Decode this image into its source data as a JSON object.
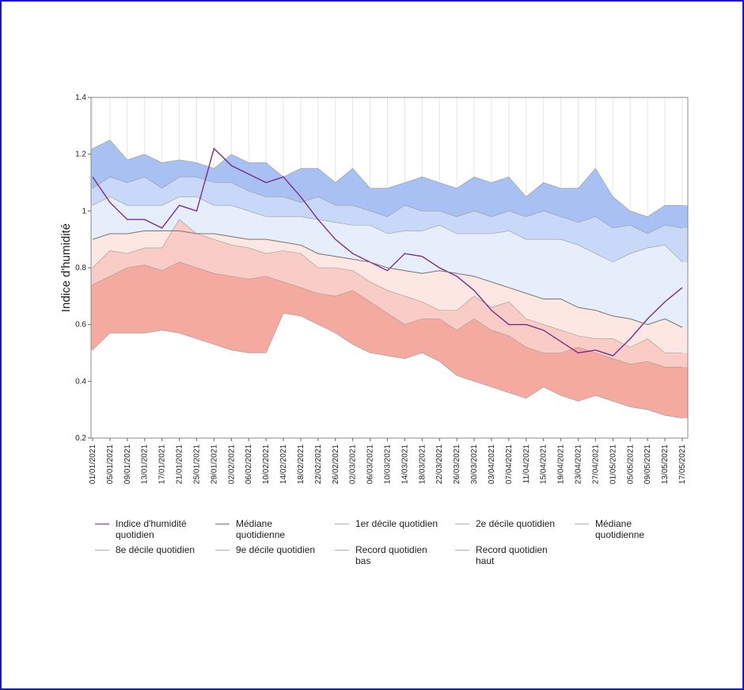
{
  "chart_data": {
    "type": "band-line",
    "y_label": "Indice d'humidité",
    "ylim": [
      0.2,
      1.4
    ],
    "yticks": [
      0.2,
      0.4,
      0.6,
      0.8,
      1.0,
      1.2,
      1.4
    ],
    "x": [
      "01/01/2021",
      "05/01/2021",
      "09/01/2021",
      "13/01/2021",
      "17/01/2021",
      "21/01/2021",
      "25/01/2021",
      "29/01/2021",
      "02/02/2021",
      "06/02/2021",
      "10/02/2021",
      "14/02/2021",
      "18/02/2021",
      "22/02/2021",
      "26/02/2021",
      "02/03/2021",
      "06/03/2021",
      "10/03/2021",
      "14/03/2021",
      "18/03/2021",
      "22/03/2021",
      "26/03/2021",
      "30/03/2021",
      "03/04/2021",
      "07/04/2021",
      "11/04/2021",
      "15/04/2021",
      "19/04/2021",
      "23/04/2021",
      "27/04/2021",
      "01/05/2021",
      "05/05/2021",
      "09/05/2021",
      "13/05/2021",
      "17/05/2021"
    ],
    "grid": true,
    "series": [
      {
        "name": "Indice d'humidité quotidien",
        "style": "line",
        "color": "#7b2d8e",
        "values": [
          1.12,
          1.03,
          0.97,
          0.97,
          0.94,
          1.02,
          1.0,
          1.22,
          1.16,
          1.13,
          1.1,
          1.12,
          1.05,
          0.97,
          0.9,
          0.85,
          0.82,
          0.79,
          0.85,
          0.84,
          0.8,
          0.77,
          0.72,
          0.65,
          0.6,
          0.6,
          0.58,
          0.54,
          0.5,
          0.51,
          0.49,
          0.55,
          0.62,
          0.68,
          0.73
        ]
      },
      {
        "name": "Médiane quotidienne",
        "style": "line",
        "color": "#777777",
        "values": [
          0.9,
          0.92,
          0.92,
          0.93,
          0.93,
          0.93,
          0.92,
          0.92,
          0.91,
          0.9,
          0.9,
          0.89,
          0.88,
          0.85,
          0.84,
          0.83,
          0.82,
          0.8,
          0.79,
          0.78,
          0.79,
          0.78,
          0.77,
          0.75,
          0.73,
          0.71,
          0.69,
          0.69,
          0.66,
          0.65,
          0.63,
          0.62,
          0.6,
          0.62,
          0.59
        ]
      },
      {
        "name": "1er décile quotidien",
        "style": "area",
        "color": "#f5aaa0",
        "values": [
          0.74,
          0.77,
          0.8,
          0.81,
          0.79,
          0.82,
          0.8,
          0.78,
          0.77,
          0.76,
          0.77,
          0.75,
          0.73,
          0.71,
          0.7,
          0.72,
          0.68,
          0.64,
          0.6,
          0.62,
          0.62,
          0.58,
          0.62,
          0.58,
          0.56,
          0.52,
          0.5,
          0.5,
          0.52,
          0.5,
          0.48,
          0.46,
          0.47,
          0.45,
          0.45
        ]
      },
      {
        "name": "2e décile quotidien",
        "style": "area",
        "color": "#f9cdc6",
        "values": [
          0.8,
          0.86,
          0.85,
          0.87,
          0.87,
          0.97,
          0.92,
          0.9,
          0.88,
          0.87,
          0.85,
          0.86,
          0.85,
          0.8,
          0.8,
          0.79,
          0.75,
          0.72,
          0.7,
          0.68,
          0.65,
          0.65,
          0.7,
          0.66,
          0.68,
          0.62,
          0.6,
          0.58,
          0.56,
          0.55,
          0.55,
          0.52,
          0.55,
          0.5,
          0.5
        ]
      },
      {
        "name": "Médiane quotidienne",
        "style": "area",
        "color": "#fde7e3",
        "values": [
          0.9,
          0.92,
          0.92,
          0.93,
          0.93,
          0.93,
          0.92,
          0.92,
          0.91,
          0.9,
          0.9,
          0.89,
          0.88,
          0.85,
          0.84,
          0.83,
          0.82,
          0.8,
          0.79,
          0.78,
          0.79,
          0.78,
          0.77,
          0.75,
          0.73,
          0.71,
          0.69,
          0.69,
          0.66,
          0.65,
          0.63,
          0.62,
          0.6,
          0.62,
          0.59
        ]
      },
      {
        "name": "8e décile quotidien",
        "style": "area",
        "color": "#e6eefc",
        "values": [
          1.02,
          1.05,
          1.02,
          1.02,
          1.02,
          1.05,
          1.05,
          1.02,
          1.02,
          1.0,
          0.98,
          0.98,
          0.98,
          0.97,
          0.96,
          0.95,
          0.95,
          0.92,
          0.93,
          0.93,
          0.95,
          0.92,
          0.92,
          0.92,
          0.93,
          0.9,
          0.9,
          0.9,
          0.88,
          0.85,
          0.82,
          0.85,
          0.87,
          0.88,
          0.82
        ]
      },
      {
        "name": "9e décile quotidien",
        "style": "area",
        "color": "#c8d8f8",
        "values": [
          1.08,
          1.12,
          1.1,
          1.12,
          1.08,
          1.12,
          1.12,
          1.1,
          1.1,
          1.07,
          1.05,
          1.05,
          1.03,
          1.05,
          1.02,
          1.02,
          1.0,
          0.98,
          1.02,
          1.0,
          1.0,
          0.98,
          1.0,
          0.98,
          1.0,
          0.98,
          1.0,
          0.98,
          0.96,
          0.98,
          0.94,
          0.95,
          0.92,
          0.95,
          0.94
        ]
      },
      {
        "name": "Record quotidien bas",
        "style": "area",
        "color": "#ffffff",
        "values": [
          0.51,
          0.57,
          0.57,
          0.57,
          0.58,
          0.57,
          0.55,
          0.53,
          0.51,
          0.5,
          0.5,
          0.64,
          0.63,
          0.6,
          0.57,
          0.53,
          0.5,
          0.49,
          0.48,
          0.5,
          0.47,
          0.42,
          0.4,
          0.38,
          0.36,
          0.34,
          0.38,
          0.35,
          0.33,
          0.35,
          0.33,
          0.31,
          0.3,
          0.28,
          0.27
        ]
      },
      {
        "name": "Record quotidien haut",
        "style": "area",
        "color": "#a8c0f2",
        "values": [
          1.22,
          1.25,
          1.18,
          1.2,
          1.17,
          1.18,
          1.17,
          1.15,
          1.2,
          1.17,
          1.17,
          1.12,
          1.15,
          1.15,
          1.1,
          1.15,
          1.08,
          1.08,
          1.1,
          1.12,
          1.1,
          1.08,
          1.12,
          1.1,
          1.12,
          1.05,
          1.1,
          1.08,
          1.08,
          1.15,
          1.05,
          1.0,
          0.98,
          1.02,
          1.02
        ]
      }
    ]
  }
}
